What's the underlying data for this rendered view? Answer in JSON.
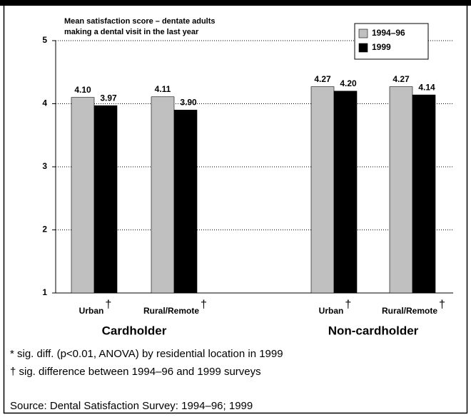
{
  "chart_data": {
    "type": "bar",
    "y_label_lines": [
      "Mean satisfaction score –  dentate adults",
      "making a dental visit in the last year"
    ],
    "categories": [
      "Urban",
      "Rural/Remote",
      "Urban",
      "Rural/Remote"
    ],
    "category_markers": [
      "†",
      "†",
      "†",
      "†"
    ],
    "groups": [
      {
        "name": "Cardholder",
        "categories": [
          0,
          1
        ]
      },
      {
        "name": "Non-cardholder",
        "categories": [
          2,
          3
        ]
      }
    ],
    "series": [
      {
        "name": "1994–96",
        "color": "#c0c0c0",
        "values": [
          4.1,
          4.11,
          4.27,
          4.27
        ],
        "value_labels": [
          "4.10",
          "4.11",
          "4.27",
          "4.27"
        ]
      },
      {
        "name": "1999",
        "color": "#000000",
        "values": [
          3.97,
          3.9,
          4.2,
          4.14
        ],
        "value_labels": [
          "3.97",
          "3.90",
          "4.20",
          "4.14"
        ]
      }
    ],
    "ylim": [
      1,
      5
    ],
    "yticks": [
      1,
      2,
      3,
      4,
      5
    ],
    "grid": true,
    "legend": "upper right",
    "footnotes": [
      "* sig. diff. (p<0.01, ANOVA) by residential location in 1999",
      "† sig. difference between 1994–96 and 1999 surveys",
      "Source:  Dental Satisfaction Survey: 1994–96; 1999"
    ]
  }
}
